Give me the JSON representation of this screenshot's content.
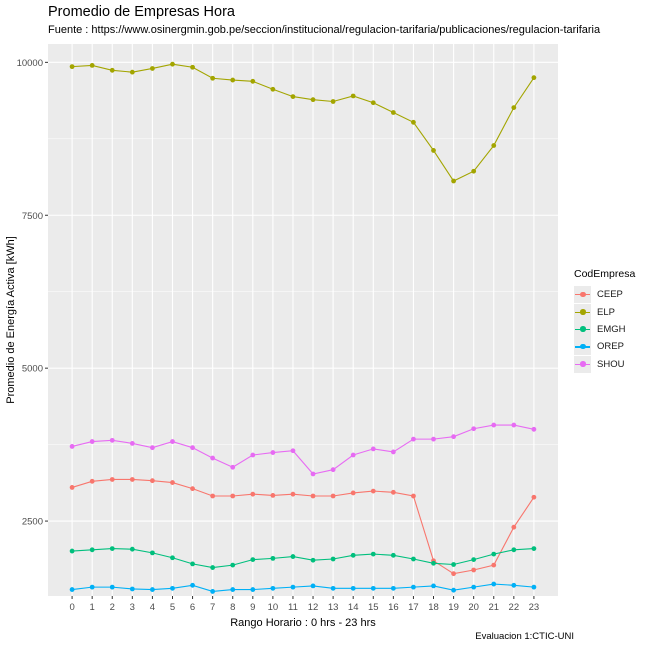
{
  "chart_data": {
    "type": "line",
    "title": "Promedio de Empresas Hora",
    "subtitle": "Fuente : https://www.osinergmin.gob.pe/seccion/institucional/regulacion-tarifaria/publicaciones/regulacion-tarifaria",
    "xlabel": "Rango Horario : 0 hrs -  23 hrs",
    "ylabel": "Promedio de Energía Activa [kWh]",
    "caption": "Evaluacion 1:CTIC-UNI",
    "legend_title": "CodEmpresa",
    "legend_position": "right",
    "grid": true,
    "x": [
      0,
      1,
      2,
      3,
      4,
      5,
      6,
      7,
      8,
      9,
      10,
      11,
      12,
      13,
      14,
      15,
      16,
      17,
      18,
      19,
      20,
      21,
      22,
      23
    ],
    "x_ticks": [
      "0",
      "1",
      "2",
      "3",
      "4",
      "5",
      "6",
      "7",
      "8",
      "9",
      "10",
      "11",
      "12",
      "13",
      "14",
      "15",
      "16",
      "17",
      "18",
      "19",
      "20",
      "21",
      "22",
      "23"
    ],
    "y_ticks": [
      2500,
      5000,
      7500,
      10000
    ],
    "y_tick_labels": [
      "2500",
      "5000",
      "7500",
      "10000"
    ],
    "ylim": [
      1275,
      10300
    ],
    "xlim": [
      -1.2,
      24.2
    ],
    "series": [
      {
        "name": "CEEP",
        "color": "#F8766D",
        "values": [
          3050,
          3150,
          3180,
          3180,
          3160,
          3130,
          3030,
          2910,
          2910,
          2940,
          2920,
          2940,
          2910,
          2910,
          2960,
          2990,
          2970,
          2910,
          1850,
          1640,
          1700,
          1780,
          2400,
          2890
        ]
      },
      {
        "name": "ELP",
        "color": "#A3A500",
        "values": [
          9930,
          9950,
          9870,
          9840,
          9900,
          9970,
          9920,
          9740,
          9710,
          9690,
          9560,
          9440,
          9390,
          9360,
          9450,
          9340,
          9180,
          9020,
          8560,
          8060,
          8220,
          8640,
          9260,
          9750
        ]
      },
      {
        "name": "EMGH",
        "color": "#00BF7D",
        "values": [
          2010,
          2030,
          2050,
          2040,
          1980,
          1900,
          1800,
          1740,
          1780,
          1870,
          1890,
          1920,
          1860,
          1880,
          1940,
          1960,
          1940,
          1880,
          1810,
          1790,
          1870,
          1960,
          2030,
          2050
        ]
      },
      {
        "name": "OREP",
        "color": "#00B0F6",
        "values": [
          1380,
          1420,
          1420,
          1390,
          1380,
          1400,
          1450,
          1350,
          1380,
          1380,
          1400,
          1420,
          1440,
          1400,
          1400,
          1400,
          1400,
          1420,
          1440,
          1370,
          1420,
          1470,
          1450,
          1420
        ]
      },
      {
        "name": "SHOU",
        "color": "#E76BF3",
        "values": [
          3720,
          3800,
          3820,
          3770,
          3700,
          3800,
          3700,
          3530,
          3380,
          3580,
          3620,
          3650,
          3270,
          3340,
          3580,
          3680,
          3630,
          3840,
          3840,
          3880,
          4010,
          4070,
          4070,
          4000
        ]
      }
    ]
  }
}
